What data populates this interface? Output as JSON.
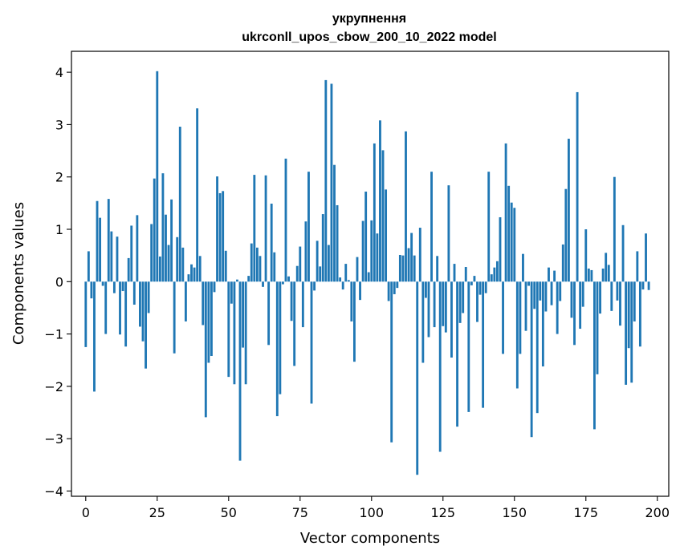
{
  "chart_data": {
    "type": "bar",
    "title": "укрупнення",
    "subtitle": "ukrconll_upos_cbow_200_10_2022 model",
    "xlabel": "Vector components",
    "ylabel": "Components values",
    "xlim": [
      -5,
      204
    ],
    "ylim": [
      -4.1,
      4.4
    ],
    "xticks": [
      0,
      25,
      50,
      75,
      100,
      125,
      150,
      175,
      200
    ],
    "yticks": [
      -4,
      -3,
      -2,
      -1,
      0,
      1,
      2,
      3,
      4
    ],
    "bar_color": "#1f77b4",
    "values": [
      -1.25,
      0.58,
      -0.32,
      -2.1,
      1.54,
      1.22,
      -0.08,
      -1.0,
      1.58,
      0.96,
      -0.22,
      0.86,
      -1.01,
      -0.18,
      -1.24,
      0.45,
      1.07,
      -0.44,
      1.27,
      -0.86,
      -1.14,
      -1.66,
      -0.6,
      1.1,
      1.97,
      4.02,
      0.48,
      2.07,
      1.28,
      0.7,
      1.57,
      -1.37,
      0.85,
      2.96,
      0.65,
      -0.76,
      0.14,
      0.33,
      0.27,
      3.31,
      0.49,
      -0.83,
      -2.59,
      -1.55,
      -1.42,
      -0.2,
      2.01,
      1.69,
      1.73,
      0.59,
      -1.82,
      -0.42,
      -1.96,
      0.04,
      -3.42,
      -1.26,
      -1.96,
      0.11,
      0.73,
      2.04,
      0.65,
      0.49,
      -0.1,
      2.03,
      -1.21,
      1.49,
      0.56,
      -2.57,
      -2.15,
      -0.05,
      2.35,
      0.1,
      -0.75,
      -1.61,
      0.3,
      0.67,
      -0.87,
      1.15,
      2.1,
      -2.33,
      -0.17,
      0.78,
      0.29,
      1.29,
      3.85,
      0.7,
      3.78,
      2.23,
      1.46,
      0.08,
      -0.15,
      0.34,
      0.03,
      -0.76,
      -1.53,
      0.47,
      -0.35,
      1.16,
      1.72,
      0.18,
      1.17,
      2.64,
      0.92,
      3.08,
      2.51,
      1.76,
      -0.37,
      -3.07,
      -0.24,
      -0.12,
      0.51,
      0.5,
      2.87,
      0.64,
      0.93,
      0.5,
      -3.69,
      1.03,
      -1.55,
      -0.31,
      -1.06,
      2.1,
      -0.87,
      0.49,
      -3.25,
      -0.85,
      -0.97,
      1.84,
      -1.45,
      0.34,
      -2.77,
      -0.79,
      -0.6,
      0.28,
      -2.49,
      -0.07,
      0.11,
      -0.77,
      -0.25,
      -2.41,
      -0.22,
      2.1,
      0.14,
      0.27,
      0.39,
      1.23,
      -1.38,
      2.64,
      1.83,
      1.51,
      1.41,
      -2.04,
      -1.38,
      0.53,
      -0.94,
      -0.08,
      -2.97,
      -0.52,
      -2.51,
      -0.36,
      -1.62,
      -0.57,
      0.27,
      -0.45,
      0.21,
      -1.0,
      -0.37,
      0.71,
      1.77,
      2.73,
      -0.69,
      -1.21,
      3.62,
      -0.9,
      -0.48,
      1.0,
      0.25,
      0.22,
      -2.82,
      -1.77,
      -0.61,
      0.25,
      0.55,
      0.32,
      -0.56,
      2.0,
      -0.36,
      -0.84,
      1.08,
      -1.97,
      -1.27,
      -1.93,
      -0.76,
      0.58,
      -1.24,
      -0.15,
      0.92,
      -0.16
    ]
  }
}
